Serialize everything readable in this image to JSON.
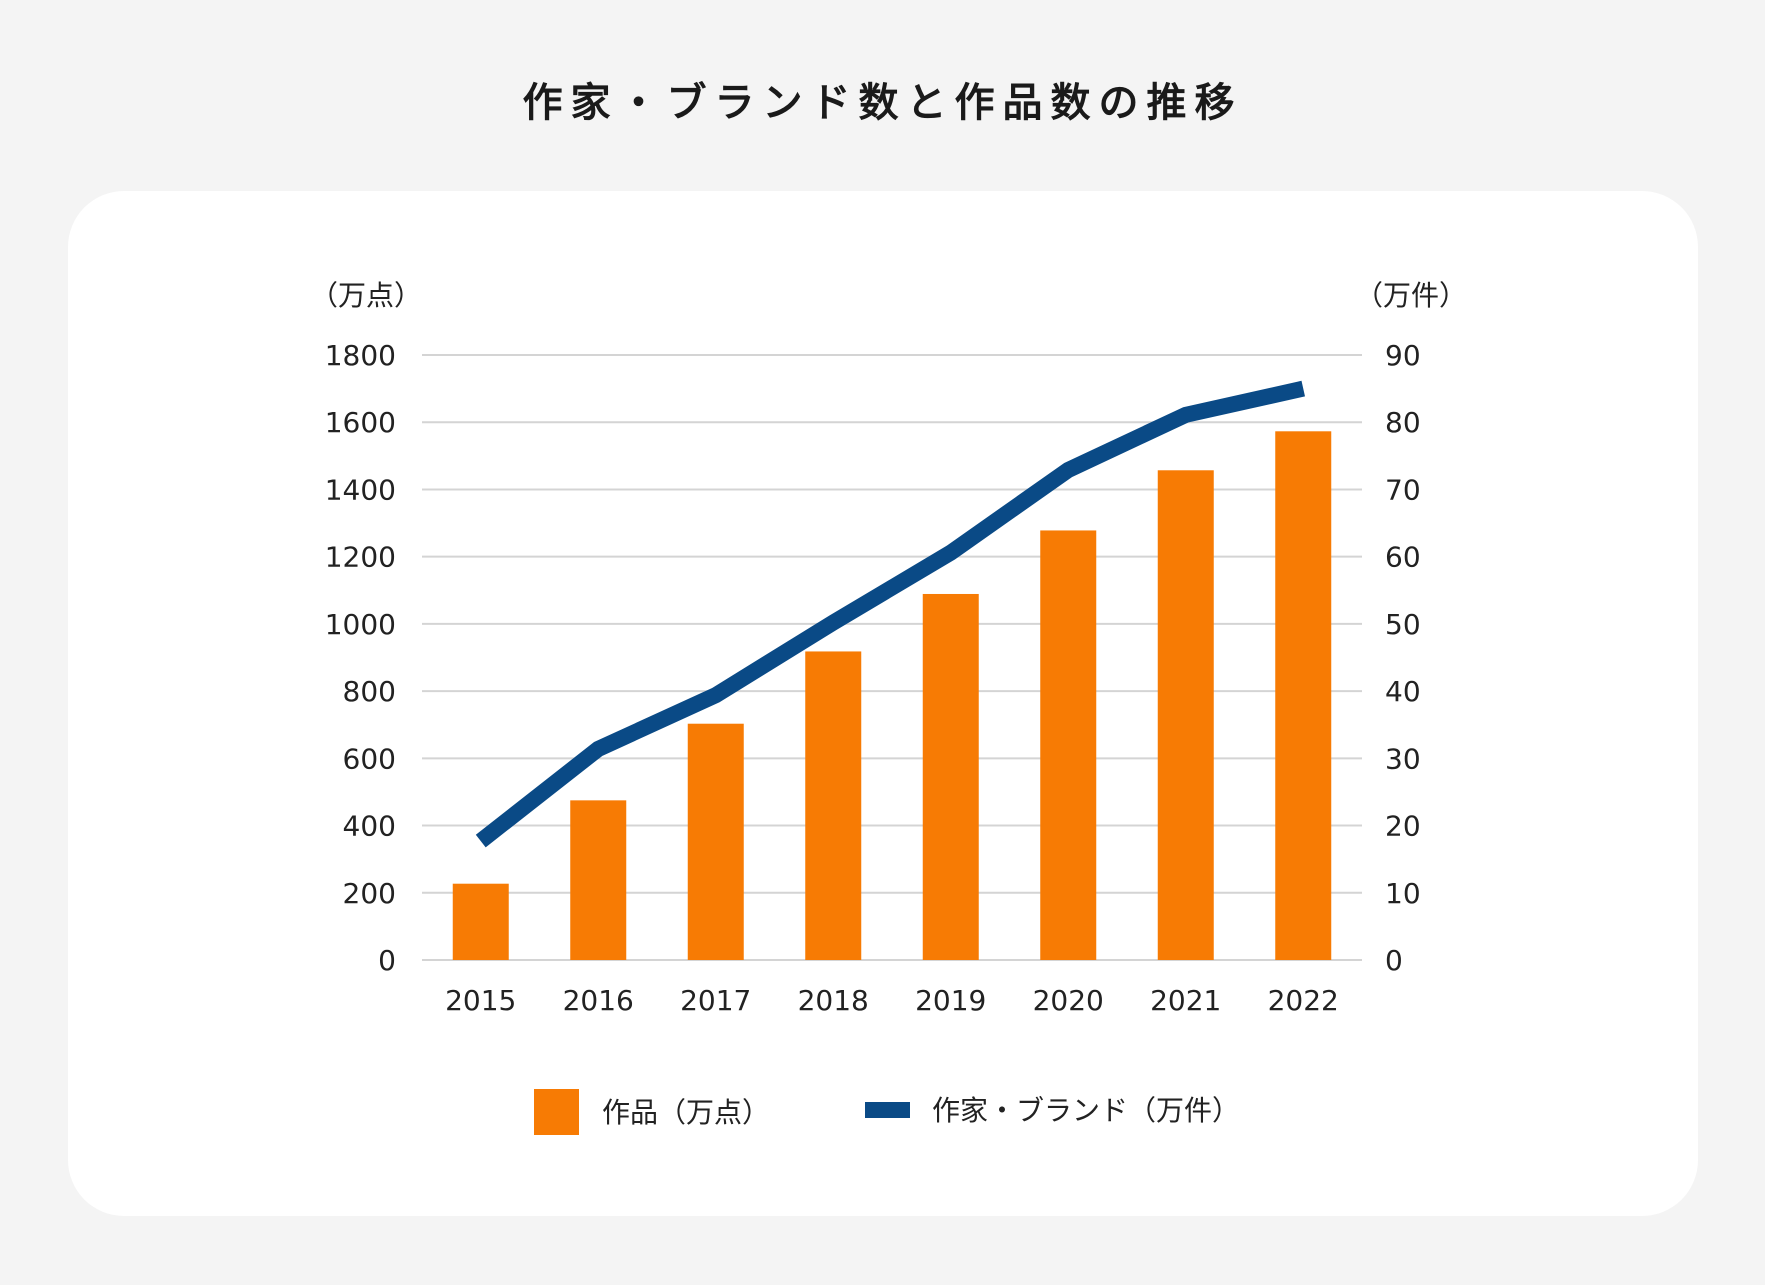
{
  "chart_data": {
    "type": "bar+line",
    "title": "作家・ブランド数と作品数の推移",
    "categories": [
      "2015",
      "2016",
      "2017",
      "2018",
      "2019",
      "2020",
      "2021",
      "2022"
    ],
    "y_left": {
      "unit_label": "（万点）",
      "range": [
        0,
        1800
      ],
      "ticks": [
        0,
        200,
        400,
        600,
        800,
        1000,
        1200,
        1400,
        1600,
        1800
      ]
    },
    "y_right": {
      "unit_label": "（万件）",
      "range": [
        0,
        90
      ],
      "ticks": [
        0,
        10,
        20,
        30,
        40,
        50,
        60,
        70,
        80,
        90
      ]
    },
    "grid": true,
    "legend_position": "bottom",
    "series": [
      {
        "name": "作品（万点）",
        "type": "bar",
        "axis": "left",
        "color": "#f77b04",
        "values": [
          227,
          475,
          703,
          918,
          1089,
          1278,
          1457,
          1573
        ]
      },
      {
        "name": "作家・ブランド（万件）",
        "type": "line",
        "axis": "right",
        "color": "#0a4a86",
        "values": [
          17.7,
          31.4,
          39.4,
          50.2,
          60.6,
          72.9,
          81.1,
          85.0
        ]
      }
    ]
  }
}
